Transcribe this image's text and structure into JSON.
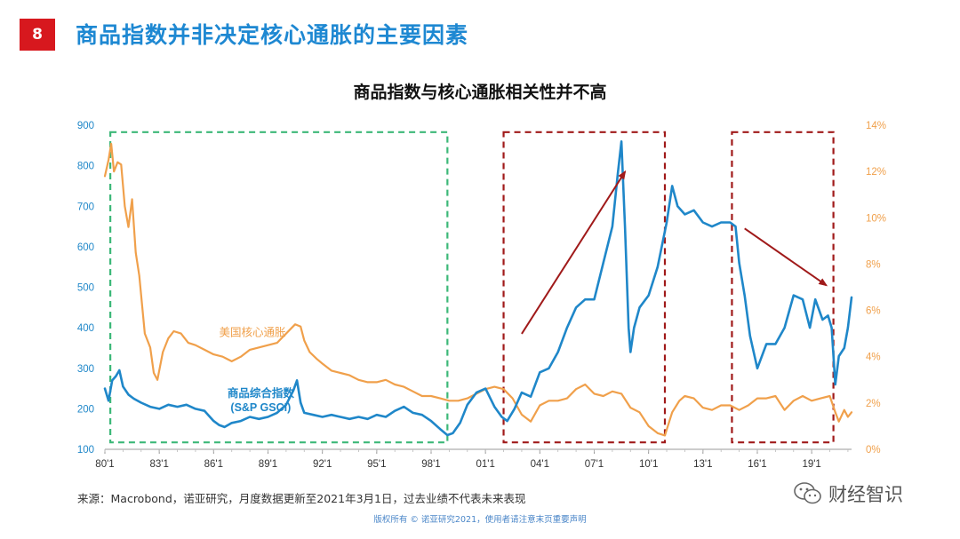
{
  "slide": {
    "badge": "8",
    "title": "商品指数并非决定核心通胀的主要因素"
  },
  "source_note": "来源：Macrobond，诺亚研究，月度数据更新至2021年3月1日，过去业绩不代表未来表现",
  "copyright": "版权所有 © 诺亚研究2021，使用者请注意末页重要声明",
  "watermark": {
    "text": "财经智识",
    "icon": "wechat-icon"
  },
  "chart_data": {
    "type": "line",
    "title": "商品指数与核心通胀相关性并不高",
    "x_tick_labels": [
      "80'1",
      "83'1",
      "86'1",
      "89'1",
      "92'1",
      "95'1",
      "98'1",
      "01'1",
      "04'1",
      "07'1",
      "10'1",
      "13'1",
      "16'1",
      "19'1"
    ],
    "x_range": [
      1980.0,
      2021.2
    ],
    "y_left": {
      "min": 100,
      "max": 900,
      "ticks": [
        100,
        200,
        300,
        400,
        500,
        600,
        700,
        800,
        900
      ],
      "color": "#1f87c9"
    },
    "y_right": {
      "min": 0,
      "max": 14,
      "ticks": [
        "0%",
        "2%",
        "4%",
        "6%",
        "8%",
        "10%",
        "12%",
        "14%"
      ],
      "color": "#f0a04b"
    },
    "series": [
      {
        "name": "商品综合指数",
        "name_line2": "(S&P GSCI)",
        "axis": "left",
        "color": "#1f87c9",
        "x": [
          1980.0,
          1980.2,
          1980.4,
          1980.6,
          1980.8,
          1981.0,
          1981.3,
          1981.6,
          1982.0,
          1982.5,
          1983.0,
          1983.5,
          1984.0,
          1984.5,
          1985.0,
          1985.5,
          1986.0,
          1986.3,
          1986.6,
          1987.0,
          1987.5,
          1988.0,
          1988.5,
          1989.0,
          1989.5,
          1990.0,
          1990.4,
          1990.6,
          1990.8,
          1991.0,
          1991.5,
          1992.0,
          1992.5,
          1993.0,
          1993.5,
          1994.0,
          1994.5,
          1995.0,
          1995.5,
          1996.0,
          1996.5,
          1997.0,
          1997.5,
          1998.0,
          1998.5,
          1998.9,
          1999.2,
          1999.6,
          2000.0,
          2000.5,
          2001.0,
          2001.5,
          2001.9,
          2002.2,
          2002.6,
          2003.0,
          2003.5,
          2004.0,
          2004.5,
          2005.0,
          2005.5,
          2006.0,
          2006.5,
          2007.0,
          2007.5,
          2008.0,
          2008.3,
          2008.5,
          2008.7,
          2008.9,
          2009.0,
          2009.2,
          2009.5,
          2010.0,
          2010.5,
          2011.0,
          2011.3,
          2011.6,
          2012.0,
          2012.5,
          2013.0,
          2013.5,
          2014.0,
          2014.5,
          2014.8,
          2015.0,
          2015.3,
          2015.6,
          2016.0,
          2016.5,
          2017.0,
          2017.5,
          2018.0,
          2018.5,
          2018.9,
          2019.2,
          2019.6,
          2019.9,
          2020.1,
          2020.3,
          2020.5,
          2020.8,
          2021.0,
          2021.2
        ],
        "values": [
          250,
          220,
          270,
          280,
          295,
          255,
          235,
          225,
          215,
          205,
          200,
          210,
          205,
          210,
          200,
          195,
          170,
          160,
          155,
          165,
          170,
          180,
          175,
          180,
          190,
          210,
          245,
          270,
          215,
          190,
          185,
          180,
          185,
          180,
          175,
          180,
          175,
          185,
          180,
          195,
          205,
          190,
          185,
          170,
          150,
          135,
          140,
          165,
          210,
          240,
          250,
          205,
          180,
          170,
          200,
          240,
          230,
          290,
          300,
          340,
          400,
          450,
          470,
          470,
          560,
          650,
          780,
          860,
          650,
          400,
          340,
          400,
          450,
          480,
          550,
          660,
          750,
          700,
          680,
          690,
          660,
          650,
          660,
          660,
          650,
          560,
          480,
          380,
          300,
          360,
          360,
          400,
          480,
          470,
          400,
          470,
          420,
          430,
          400,
          260,
          330,
          350,
          400,
          475
        ]
      },
      {
        "name": "美国核心通胀",
        "axis": "right",
        "color": "#f0a04b",
        "x": [
          1980.0,
          1980.2,
          1980.35,
          1980.5,
          1980.7,
          1980.9,
          1981.1,
          1981.3,
          1981.5,
          1981.7,
          1981.9,
          1982.2,
          1982.5,
          1982.7,
          1982.9,
          1983.2,
          1983.5,
          1983.8,
          1984.2,
          1984.6,
          1985.0,
          1985.5,
          1986.0,
          1986.5,
          1987.0,
          1987.5,
          1988.0,
          1988.5,
          1989.0,
          1989.5,
          1990.0,
          1990.5,
          1990.8,
          1991.0,
          1991.3,
          1991.7,
          1992.0,
          1992.5,
          1993.0,
          1993.5,
          1994.0,
          1994.5,
          1995.0,
          1995.5,
          1996.0,
          1996.5,
          1997.0,
          1997.5,
          1998.0,
          1998.5,
          1999.0,
          1999.5,
          2000.0,
          2000.5,
          2001.0,
          2001.5,
          2002.0,
          2002.5,
          2003.0,
          2003.5,
          2004.0,
          2004.5,
          2005.0,
          2005.5,
          2006.0,
          2006.5,
          2007.0,
          2007.5,
          2008.0,
          2008.5,
          2009.0,
          2009.5,
          2010.0,
          2010.5,
          2010.9,
          2011.3,
          2011.7,
          2012.0,
          2012.5,
          2013.0,
          2013.5,
          2014.0,
          2014.5,
          2015.0,
          2015.5,
          2016.0,
          2016.5,
          2017.0,
          2017.5,
          2018.0,
          2018.5,
          2019.0,
          2019.5,
          2020.0,
          2020.3,
          2020.5,
          2020.8,
          2021.0,
          2021.2
        ],
        "values": [
          11.8,
          12.5,
          13.2,
          12.0,
          12.4,
          12.3,
          10.5,
          9.6,
          10.8,
          8.5,
          7.5,
          5.0,
          4.4,
          3.3,
          3.0,
          4.2,
          4.8,
          5.1,
          5.0,
          4.6,
          4.5,
          4.3,
          4.1,
          4.0,
          3.8,
          4.0,
          4.3,
          4.4,
          4.5,
          4.6,
          5.0,
          5.4,
          5.3,
          4.7,
          4.2,
          3.9,
          3.7,
          3.4,
          3.3,
          3.2,
          3.0,
          2.9,
          2.9,
          3.0,
          2.8,
          2.7,
          2.5,
          2.3,
          2.3,
          2.2,
          2.1,
          2.1,
          2.2,
          2.4,
          2.6,
          2.7,
          2.6,
          2.2,
          1.5,
          1.2,
          1.9,
          2.1,
          2.1,
          2.2,
          2.6,
          2.8,
          2.4,
          2.3,
          2.5,
          2.4,
          1.8,
          1.6,
          1.0,
          0.7,
          0.6,
          1.6,
          2.1,
          2.3,
          2.2,
          1.8,
          1.7,
          1.9,
          1.9,
          1.7,
          1.9,
          2.2,
          2.2,
          2.3,
          1.7,
          2.1,
          2.3,
          2.1,
          2.2,
          2.3,
          1.6,
          1.2,
          1.7,
          1.4,
          1.6
        ]
      }
    ],
    "annotations": {
      "boxes": [
        {
          "x0": 1980.3,
          "x1": 1998.9,
          "y0": 0.3,
          "y1": 13.7,
          "axis": "right",
          "style": "green-dashed",
          "color": "#3cb878"
        },
        {
          "x0": 2002.0,
          "x1": 2010.9,
          "y0": 0.3,
          "y1": 13.7,
          "axis": "right",
          "style": "red-dashed",
          "color": "#a01a1a"
        },
        {
          "x0": 2014.6,
          "x1": 2020.2,
          "y0": 0.3,
          "y1": 13.7,
          "axis": "right",
          "style": "red-dashed",
          "color": "#a01a1a"
        }
      ],
      "arrows": [
        {
          "from": [
            2003.0,
            385
          ],
          "to": [
            2008.7,
            785
          ],
          "axis": "left",
          "color": "#a01a1a"
        },
        {
          "from": [
            2015.3,
            645
          ],
          "to": [
            2019.8,
            505
          ],
          "axis": "left",
          "color": "#a01a1a"
        }
      ]
    }
  }
}
